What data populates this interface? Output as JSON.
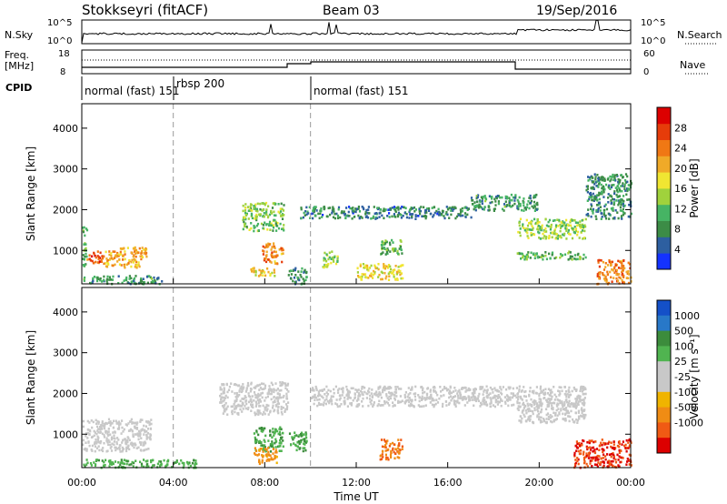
{
  "header": {
    "title": "Stokkseyri (fitACF)",
    "beam": "Beam 03",
    "date": "19/Sep/2016"
  },
  "noise_panel": {
    "left_label": "N.Sky",
    "left_ticks": [
      "10^5",
      "10^0"
    ],
    "right_ticks": [
      "10^5",
      "10^0"
    ],
    "right_label": "N.Search"
  },
  "freq_panel": {
    "left_label_1": "Freq.",
    "left_label_2": "[MHz]",
    "left_ticks": [
      "18",
      "8"
    ],
    "right_ticks": [
      "60",
      "0"
    ],
    "right_label": "Nave"
  },
  "cpid": {
    "label": "CPID",
    "segments": [
      {
        "name": "normal (fast) 151",
        "start_hour": 0,
        "end_hour": 4
      },
      {
        "name": "rbsp 200",
        "start_hour": 4,
        "end_hour": 10
      },
      {
        "name": "normal (fast) 151",
        "start_hour": 10,
        "end_hour": 24
      }
    ]
  },
  "colors": {
    "power_scale": [
      "#1432ff",
      "#2d5fa0",
      "#3c8c46",
      "#46b464",
      "#a0d23c",
      "#f0e632",
      "#f0aa28",
      "#f07814",
      "#e63c0a",
      "#dc0000"
    ],
    "velocity_scale": [
      "#1450c8",
      "#2878c8",
      "#3c8c3c",
      "#50b450",
      "#c8c8c8",
      "#c8c8c8",
      "#f0b400",
      "#f08c14",
      "#f05a14",
      "#dc0000"
    ],
    "background_gray": "#c8c8c8"
  },
  "chart_data": [
    {
      "type": "heatmap",
      "title": "",
      "xlabel": "",
      "ylabel": "Slant Range [km]",
      "ylim": [
        180,
        4600
      ],
      "x_hours": [
        0,
        24
      ],
      "yticks": [
        1000,
        2000,
        3000,
        4000
      ],
      "ytick_labels": [
        "1000",
        "2000",
        "3000",
        "4000"
      ],
      "colorbar": {
        "label": "Power [dB]",
        "range": [
          0,
          32
        ],
        "tick_values": [
          4,
          8,
          12,
          16,
          20,
          24,
          28
        ],
        "tick_labels": [
          "4",
          "8",
          "12",
          "16",
          "20",
          "24",
          "28"
        ]
      },
      "echo_regions": [
        {
          "t": [
            0.0,
            0.2
          ],
          "r": [
            600,
            1600
          ],
          "value": 10
        },
        {
          "t": [
            0.2,
            1.0
          ],
          "r": [
            700,
            1000
          ],
          "value": 26
        },
        {
          "t": [
            1.0,
            2.8
          ],
          "r": [
            600,
            1100
          ],
          "value": 21
        },
        {
          "t": [
            0.0,
            3.5
          ],
          "r": [
            200,
            400
          ],
          "value": 9
        },
        {
          "t": [
            7.0,
            8.8
          ],
          "r": [
            1500,
            2200
          ],
          "value": 13
        },
        {
          "t": [
            7.8,
            8.8
          ],
          "r": [
            700,
            1200
          ],
          "value": 23
        },
        {
          "t": [
            7.3,
            8.4
          ],
          "r": [
            400,
            600
          ],
          "value": 18
        },
        {
          "t": [
            9.0,
            9.8
          ],
          "r": [
            200,
            600
          ],
          "value": 8
        },
        {
          "t": [
            10.5,
            11.2
          ],
          "r": [
            600,
            1000
          ],
          "value": 14
        },
        {
          "t": [
            12.0,
            14.0
          ],
          "r": [
            300,
            700
          ],
          "value": 18
        },
        {
          "t": [
            9.5,
            17.0
          ],
          "r": [
            1800,
            2100
          ],
          "value": 7
        },
        {
          "t": [
            13.0,
            14.0
          ],
          "r": [
            900,
            1300
          ],
          "value": 11
        },
        {
          "t": [
            17.0,
            20.0
          ],
          "r": [
            2000,
            2400
          ],
          "value": 9
        },
        {
          "t": [
            19.0,
            22.0
          ],
          "r": [
            1300,
            1800
          ],
          "value": 14
        },
        {
          "t": [
            19.0,
            22.0
          ],
          "r": [
            800,
            1000
          ],
          "value": 11
        },
        {
          "t": [
            22.0,
            24.0
          ],
          "r": [
            1800,
            2900
          ],
          "value": 8
        },
        {
          "t": [
            22.5,
            24.0
          ],
          "r": [
            200,
            800
          ],
          "value": 23
        }
      ]
    },
    {
      "type": "heatmap",
      "title": "",
      "xlabel": "Time UT",
      "ylabel": "Slant Range [km]",
      "ylim": [
        180,
        4600
      ],
      "x_hours": [
        0,
        24
      ],
      "xticks_hours": [
        0,
        4,
        8,
        12,
        16,
        20,
        24
      ],
      "xtick_labels": [
        "00:00",
        "04:00",
        "08:00",
        "12:00",
        "16:00",
        "20:00",
        "00:00"
      ],
      "yticks": [
        1000,
        2000,
        3000,
        4000
      ],
      "ytick_labels": [
        "1000",
        "2000",
        "3000",
        "4000"
      ],
      "colorbar": {
        "label": "Velocity [m s⁻¹]",
        "tick_labels": [
          "1000",
          "500",
          "100",
          "25",
          "-25",
          "-100",
          "-500",
          "-1000"
        ]
      },
      "echo_regions": [
        {
          "t": [
            0.0,
            3.0
          ],
          "r": [
            600,
            1400
          ],
          "value": -5
        },
        {
          "t": [
            0.0,
            5.0
          ],
          "r": [
            200,
            400
          ],
          "value": 80
        },
        {
          "t": [
            6.0,
            9.0
          ],
          "r": [
            1500,
            2300
          ],
          "value": 0
        },
        {
          "t": [
            7.5,
            8.8
          ],
          "r": [
            600,
            1200
          ],
          "value": 90
        },
        {
          "t": [
            7.5,
            8.5
          ],
          "r": [
            300,
            700
          ],
          "value": -150
        },
        {
          "t": [
            9.0,
            9.8
          ],
          "r": [
            600,
            1100
          ],
          "value": 90
        },
        {
          "t": [
            10.0,
            22.0
          ],
          "r": [
            1700,
            2200
          ],
          "value": 0
        },
        {
          "t": [
            13.0,
            14.0
          ],
          "r": [
            400,
            900
          ],
          "value": -300
        },
        {
          "t": [
            19.0,
            22.0
          ],
          "r": [
            1300,
            1800
          ],
          "value": 0
        },
        {
          "t": [
            21.5,
            24.0
          ],
          "r": [
            200,
            900
          ],
          "value": -600
        }
      ]
    }
  ]
}
